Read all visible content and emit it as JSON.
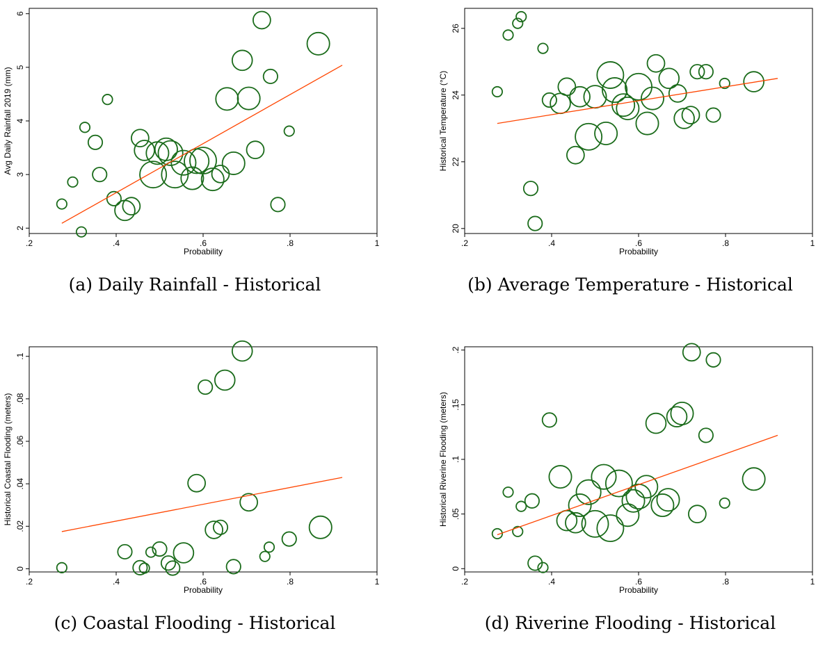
{
  "colors": {
    "marker": "#1a6b1a",
    "fit_line": "#ff4500",
    "frame": "#000000"
  },
  "chart_data": [
    {
      "type": "scatter",
      "title": "",
      "caption": "(a) Daily Rainfall - Historical",
      "xlabel": "Probability",
      "ylabel": "Avg Daily Rainfall 2019 (mm)",
      "xlim": [
        0.2,
        1.0
      ],
      "ylim": [
        1.9,
        6.1
      ],
      "xticks": [
        ".2",
        ".4",
        ".6",
        ".8",
        "1"
      ],
      "xtick_values": [
        0.2,
        0.4,
        0.6,
        0.8,
        1.0
      ],
      "yticks": [
        "2",
        "3",
        "4",
        "5",
        "6"
      ],
      "ytick_values": [
        2,
        3,
        4,
        5,
        6
      ],
      "fit_line": [
        [
          0.275,
          2.09
        ],
        [
          0.92,
          5.04
        ]
      ],
      "points": [
        {
          "x": 0.275,
          "y": 2.45,
          "w": 1
        },
        {
          "x": 0.3,
          "y": 2.86,
          "w": 1
        },
        {
          "x": 0.32,
          "y": 1.93,
          "w": 1
        },
        {
          "x": 0.328,
          "y": 3.88,
          "w": 1
        },
        {
          "x": 0.352,
          "y": 3.6,
          "w": 2
        },
        {
          "x": 0.362,
          "y": 3.0,
          "w": 2
        },
        {
          "x": 0.38,
          "y": 4.4,
          "w": 1
        },
        {
          "x": 0.395,
          "y": 2.55,
          "w": 2
        },
        {
          "x": 0.42,
          "y": 2.33,
          "w": 4
        },
        {
          "x": 0.435,
          "y": 2.41,
          "w": 3
        },
        {
          "x": 0.455,
          "y": 3.68,
          "w": 3
        },
        {
          "x": 0.465,
          "y": 3.45,
          "w": 4
        },
        {
          "x": 0.485,
          "y": 3.0,
          "w": 7
        },
        {
          "x": 0.495,
          "y": 3.4,
          "w": 5
        },
        {
          "x": 0.515,
          "y": 3.47,
          "w": 5
        },
        {
          "x": 0.525,
          "y": 3.4,
          "w": 6
        },
        {
          "x": 0.535,
          "y": 3.0,
          "w": 7
        },
        {
          "x": 0.555,
          "y": 3.22,
          "w": 6
        },
        {
          "x": 0.575,
          "y": 2.93,
          "w": 5
        },
        {
          "x": 0.585,
          "y": 3.25,
          "w": 6
        },
        {
          "x": 0.6,
          "y": 3.26,
          "w": 7
        },
        {
          "x": 0.622,
          "y": 2.91,
          "w": 5
        },
        {
          "x": 0.64,
          "y": 3.01,
          "w": 3
        },
        {
          "x": 0.655,
          "y": 4.41,
          "w": 5
        },
        {
          "x": 0.67,
          "y": 3.21,
          "w": 5
        },
        {
          "x": 0.69,
          "y": 5.13,
          "w": 4
        },
        {
          "x": 0.705,
          "y": 4.42,
          "w": 5
        },
        {
          "x": 0.72,
          "y": 3.46,
          "w": 3
        },
        {
          "x": 0.735,
          "y": 5.88,
          "w": 3
        },
        {
          "x": 0.755,
          "y": 4.83,
          "w": 2
        },
        {
          "x": 0.772,
          "y": 2.44,
          "w": 2
        },
        {
          "x": 0.798,
          "y": 3.81,
          "w": 1
        },
        {
          "x": 0.865,
          "y": 5.44,
          "w": 5
        }
      ]
    },
    {
      "type": "scatter",
      "title": "",
      "caption": "(b) Average Temperature - Historical",
      "xlabel": "Probability",
      "ylabel": "Historical Temperature (°C)",
      "xlim": [
        0.2,
        1.0
      ],
      "ylim": [
        19.85,
        26.6
      ],
      "xticks": [
        ".2",
        ".4",
        ".6",
        ".8",
        "1"
      ],
      "xtick_values": [
        0.2,
        0.4,
        0.6,
        0.8,
        1.0
      ],
      "yticks": [
        "20",
        "22",
        "24",
        "26"
      ],
      "ytick_values": [
        20,
        22,
        24,
        26
      ],
      "fit_line": [
        [
          0.275,
          23.15
        ],
        [
          0.92,
          24.5
        ]
      ],
      "points": [
        {
          "x": 0.275,
          "y": 24.1,
          "w": 1
        },
        {
          "x": 0.3,
          "y": 25.8,
          "w": 1
        },
        {
          "x": 0.322,
          "y": 26.15,
          "w": 1
        },
        {
          "x": 0.33,
          "y": 26.35,
          "w": 1
        },
        {
          "x": 0.352,
          "y": 21.2,
          "w": 2
        },
        {
          "x": 0.362,
          "y": 20.15,
          "w": 2
        },
        {
          "x": 0.38,
          "y": 25.4,
          "w": 1
        },
        {
          "x": 0.395,
          "y": 23.85,
          "w": 2
        },
        {
          "x": 0.42,
          "y": 23.75,
          "w": 4
        },
        {
          "x": 0.435,
          "y": 24.25,
          "w": 3
        },
        {
          "x": 0.455,
          "y": 22.2,
          "w": 3
        },
        {
          "x": 0.465,
          "y": 23.95,
          "w": 4
        },
        {
          "x": 0.485,
          "y": 22.75,
          "w": 7
        },
        {
          "x": 0.5,
          "y": 23.95,
          "w": 5
        },
        {
          "x": 0.525,
          "y": 22.85,
          "w": 5
        },
        {
          "x": 0.535,
          "y": 24.6,
          "w": 7
        },
        {
          "x": 0.545,
          "y": 24.15,
          "w": 6
        },
        {
          "x": 0.565,
          "y": 23.7,
          "w": 5
        },
        {
          "x": 0.575,
          "y": 23.6,
          "w": 5
        },
        {
          "x": 0.6,
          "y": 24.25,
          "w": 7
        },
        {
          "x": 0.62,
          "y": 23.15,
          "w": 5
        },
        {
          "x": 0.632,
          "y": 23.9,
          "w": 5
        },
        {
          "x": 0.64,
          "y": 24.95,
          "w": 3
        },
        {
          "x": 0.67,
          "y": 24.5,
          "w": 4
        },
        {
          "x": 0.69,
          "y": 24.05,
          "w": 3
        },
        {
          "x": 0.705,
          "y": 23.3,
          "w": 4
        },
        {
          "x": 0.72,
          "y": 23.4,
          "w": 3
        },
        {
          "x": 0.735,
          "y": 24.7,
          "w": 2
        },
        {
          "x": 0.755,
          "y": 24.7,
          "w": 2
        },
        {
          "x": 0.772,
          "y": 23.4,
          "w": 2
        },
        {
          "x": 0.798,
          "y": 24.35,
          "w": 1
        },
        {
          "x": 0.865,
          "y": 24.4,
          "w": 4
        }
      ]
    },
    {
      "type": "scatter",
      "title": "",
      "caption": "(c) Coastal Flooding - Historical",
      "xlabel": "Probability",
      "ylabel": "Historical Coastal Flooding (meters)",
      "xlim": [
        0.2,
        1.0
      ],
      "ylim": [
        -0.0015,
        0.1045
      ],
      "xticks": [
        ".2",
        ".4",
        ".6",
        ".8",
        "1"
      ],
      "xtick_values": [
        0.2,
        0.4,
        0.6,
        0.8,
        1.0
      ],
      "yticks": [
        "0",
        ".02",
        ".04",
        ".06",
        ".08",
        ".1"
      ],
      "ytick_values": [
        0,
        0.02,
        0.04,
        0.06,
        0.08,
        0.1
      ],
      "fit_line": [
        [
          0.275,
          0.0175
        ],
        [
          0.92,
          0.043
        ]
      ],
      "points": [
        {
          "x": 0.275,
          "y": 0.0005,
          "w": 1
        },
        {
          "x": 0.42,
          "y": 0.008,
          "w": 2
        },
        {
          "x": 0.455,
          "y": 0.0005,
          "w": 2
        },
        {
          "x": 0.465,
          "y": 0.0003,
          "w": 1
        },
        {
          "x": 0.48,
          "y": 0.0078,
          "w": 1
        },
        {
          "x": 0.5,
          "y": 0.0093,
          "w": 2
        },
        {
          "x": 0.52,
          "y": 0.0027,
          "w": 2
        },
        {
          "x": 0.53,
          "y": 0.0003,
          "w": 2
        },
        {
          "x": 0.555,
          "y": 0.0075,
          "w": 4
        },
        {
          "x": 0.585,
          "y": 0.0403,
          "w": 3
        },
        {
          "x": 0.605,
          "y": 0.0855,
          "w": 2
        },
        {
          "x": 0.625,
          "y": 0.0183,
          "w": 3
        },
        {
          "x": 0.64,
          "y": 0.0195,
          "w": 2
        },
        {
          "x": 0.65,
          "y": 0.0888,
          "w": 4
        },
        {
          "x": 0.67,
          "y": 0.001,
          "w": 2
        },
        {
          "x": 0.69,
          "y": 0.1025,
          "w": 4
        },
        {
          "x": 0.705,
          "y": 0.0313,
          "w": 3
        },
        {
          "x": 0.742,
          "y": 0.0058,
          "w": 1
        },
        {
          "x": 0.752,
          "y": 0.0102,
          "w": 1
        },
        {
          "x": 0.798,
          "y": 0.014,
          "w": 2
        },
        {
          "x": 0.87,
          "y": 0.0195,
          "w": 5
        }
      ]
    },
    {
      "type": "scatter",
      "title": "",
      "caption": "(d) Riverine Flooding - Historical",
      "xlabel": "Probability",
      "ylabel": "Historical Riverine Flooding (meters)",
      "xlim": [
        0.2,
        1.0
      ],
      "ylim": [
        -0.003,
        0.203
      ],
      "xticks": [
        ".2",
        ".4",
        ".6",
        ".8",
        "1"
      ],
      "xtick_values": [
        0.2,
        0.4,
        0.6,
        0.8,
        1.0
      ],
      "yticks": [
        "0",
        ".05",
        ".1",
        ".15",
        ".2"
      ],
      "ytick_values": [
        0,
        0.05,
        0.1,
        0.15,
        0.2
      ],
      "fit_line": [
        [
          0.275,
          0.031
        ],
        [
          0.92,
          0.122
        ]
      ],
      "points": [
        {
          "x": 0.275,
          "y": 0.032,
          "w": 1
        },
        {
          "x": 0.3,
          "y": 0.07,
          "w": 1
        },
        {
          "x": 0.322,
          "y": 0.034,
          "w": 1
        },
        {
          "x": 0.33,
          "y": 0.057,
          "w": 1
        },
        {
          "x": 0.355,
          "y": 0.062,
          "w": 2
        },
        {
          "x": 0.362,
          "y": 0.005,
          "w": 2
        },
        {
          "x": 0.38,
          "y": 0.001,
          "w": 1
        },
        {
          "x": 0.395,
          "y": 0.136,
          "w": 2
        },
        {
          "x": 0.42,
          "y": 0.084,
          "w": 5
        },
        {
          "x": 0.435,
          "y": 0.044,
          "w": 4
        },
        {
          "x": 0.455,
          "y": 0.042,
          "w": 4
        },
        {
          "x": 0.465,
          "y": 0.058,
          "w": 5
        },
        {
          "x": 0.485,
          "y": 0.07,
          "w": 6
        },
        {
          "x": 0.5,
          "y": 0.041,
          "w": 7
        },
        {
          "x": 0.52,
          "y": 0.084,
          "w": 6
        },
        {
          "x": 0.535,
          "y": 0.037,
          "w": 7
        },
        {
          "x": 0.555,
          "y": 0.078,
          "w": 7
        },
        {
          "x": 0.575,
          "y": 0.049,
          "w": 5
        },
        {
          "x": 0.588,
          "y": 0.062,
          "w": 5
        },
        {
          "x": 0.6,
          "y": 0.066,
          "w": 6
        },
        {
          "x": 0.618,
          "y": 0.075,
          "w": 5
        },
        {
          "x": 0.64,
          "y": 0.133,
          "w": 4
        },
        {
          "x": 0.655,
          "y": 0.058,
          "w": 5
        },
        {
          "x": 0.668,
          "y": 0.063,
          "w": 5
        },
        {
          "x": 0.688,
          "y": 0.139,
          "w": 4
        },
        {
          "x": 0.7,
          "y": 0.142,
          "w": 5
        },
        {
          "x": 0.722,
          "y": 0.198,
          "w": 3
        },
        {
          "x": 0.735,
          "y": 0.05,
          "w": 3
        },
        {
          "x": 0.755,
          "y": 0.122,
          "w": 2
        },
        {
          "x": 0.772,
          "y": 0.191,
          "w": 2
        },
        {
          "x": 0.798,
          "y": 0.06,
          "w": 1
        },
        {
          "x": 0.865,
          "y": 0.082,
          "w": 5
        }
      ]
    }
  ]
}
